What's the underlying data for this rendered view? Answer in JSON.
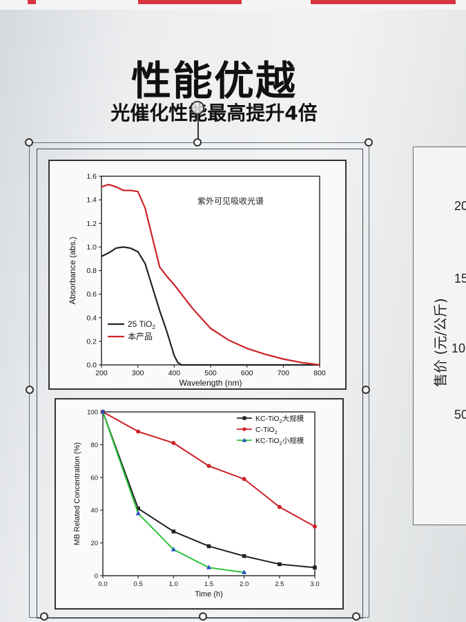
{
  "slide": {
    "title": "性能优越",
    "subtitle": "光催化性能最高提升4倍"
  },
  "right_chart": {
    "ylabel": "售价 (元/公斤)",
    "ticks": [
      "20",
      "15",
      "10",
      "50"
    ]
  },
  "chart_data": [
    {
      "type": "line",
      "annotation": "紫外可见吸收光谱",
      "xlabel": "Wavelength (nm)",
      "ylabel": "Absorbance (abs.)",
      "xlim": [
        200,
        800
      ],
      "ylim": [
        0,
        1.6
      ],
      "xticks": [
        "200",
        "300",
        "400",
        "500",
        "600",
        "700",
        "800"
      ],
      "yticks": [
        "0.0",
        "0.2",
        "0.4",
        "0.6",
        "0.8",
        "1.0",
        "1.2",
        "1.4",
        "1.6"
      ],
      "legend_position": "bottom-left",
      "series": [
        {
          "name": "25 TiO2",
          "color": "#222222",
          "x": [
            200,
            220,
            240,
            260,
            280,
            300,
            320,
            340,
            360,
            380,
            400,
            410,
            420,
            450,
            500,
            600,
            700,
            800
          ],
          "y": [
            0.92,
            0.95,
            0.99,
            1.0,
            0.99,
            0.96,
            0.86,
            0.66,
            0.46,
            0.28,
            0.08,
            0.02,
            0.0,
            0.0,
            0.0,
            0.0,
            0.0,
            0.0
          ]
        },
        {
          "name": "本产品",
          "color": "#cc2127",
          "x": [
            200,
            220,
            240,
            260,
            280,
            300,
            320,
            340,
            360,
            380,
            400,
            450,
            500,
            550,
            600,
            650,
            700,
            750,
            800
          ],
          "y": [
            1.51,
            1.53,
            1.51,
            1.48,
            1.48,
            1.47,
            1.33,
            1.08,
            0.83,
            0.75,
            0.68,
            0.48,
            0.31,
            0.21,
            0.14,
            0.09,
            0.05,
            0.02,
            0.0
          ]
        }
      ]
    },
    {
      "type": "line",
      "xlabel": "Time (h)",
      "ylabel": "MB Related Concentration (%)",
      "xlim": [
        0,
        3
      ],
      "ylim": [
        0,
        100
      ],
      "xticks": [
        "0.0",
        "0.5",
        "1.0",
        "1.5",
        "2.0",
        "2.5",
        "3.0"
      ],
      "yticks": [
        "0",
        "20",
        "40",
        "60",
        "80",
        "100"
      ],
      "legend_position": "top-right",
      "series": [
        {
          "name": "KC-TiO2大规模",
          "color": "#222222",
          "marker": "square",
          "x": [
            0,
            0.5,
            1.0,
            1.5,
            2.0,
            2.5,
            3.0
          ],
          "y": [
            100,
            41,
            27,
            18,
            12,
            7,
            5
          ]
        },
        {
          "name": "C-TiO2",
          "color": "#cc2127",
          "marker": "circle",
          "x": [
            0,
            0.5,
            1.0,
            1.5,
            2.0,
            2.5,
            3.0
          ],
          "y": [
            100,
            88,
            81,
            67,
            59,
            42,
            30
          ]
        },
        {
          "name": "KC-TiO2小规模",
          "color": "#2bc43a",
          "marker": "triangle",
          "x": [
            0,
            0.5,
            1.0,
            1.5,
            2.0
          ],
          "y": [
            100,
            38,
            16,
            5,
            2
          ]
        }
      ]
    }
  ]
}
